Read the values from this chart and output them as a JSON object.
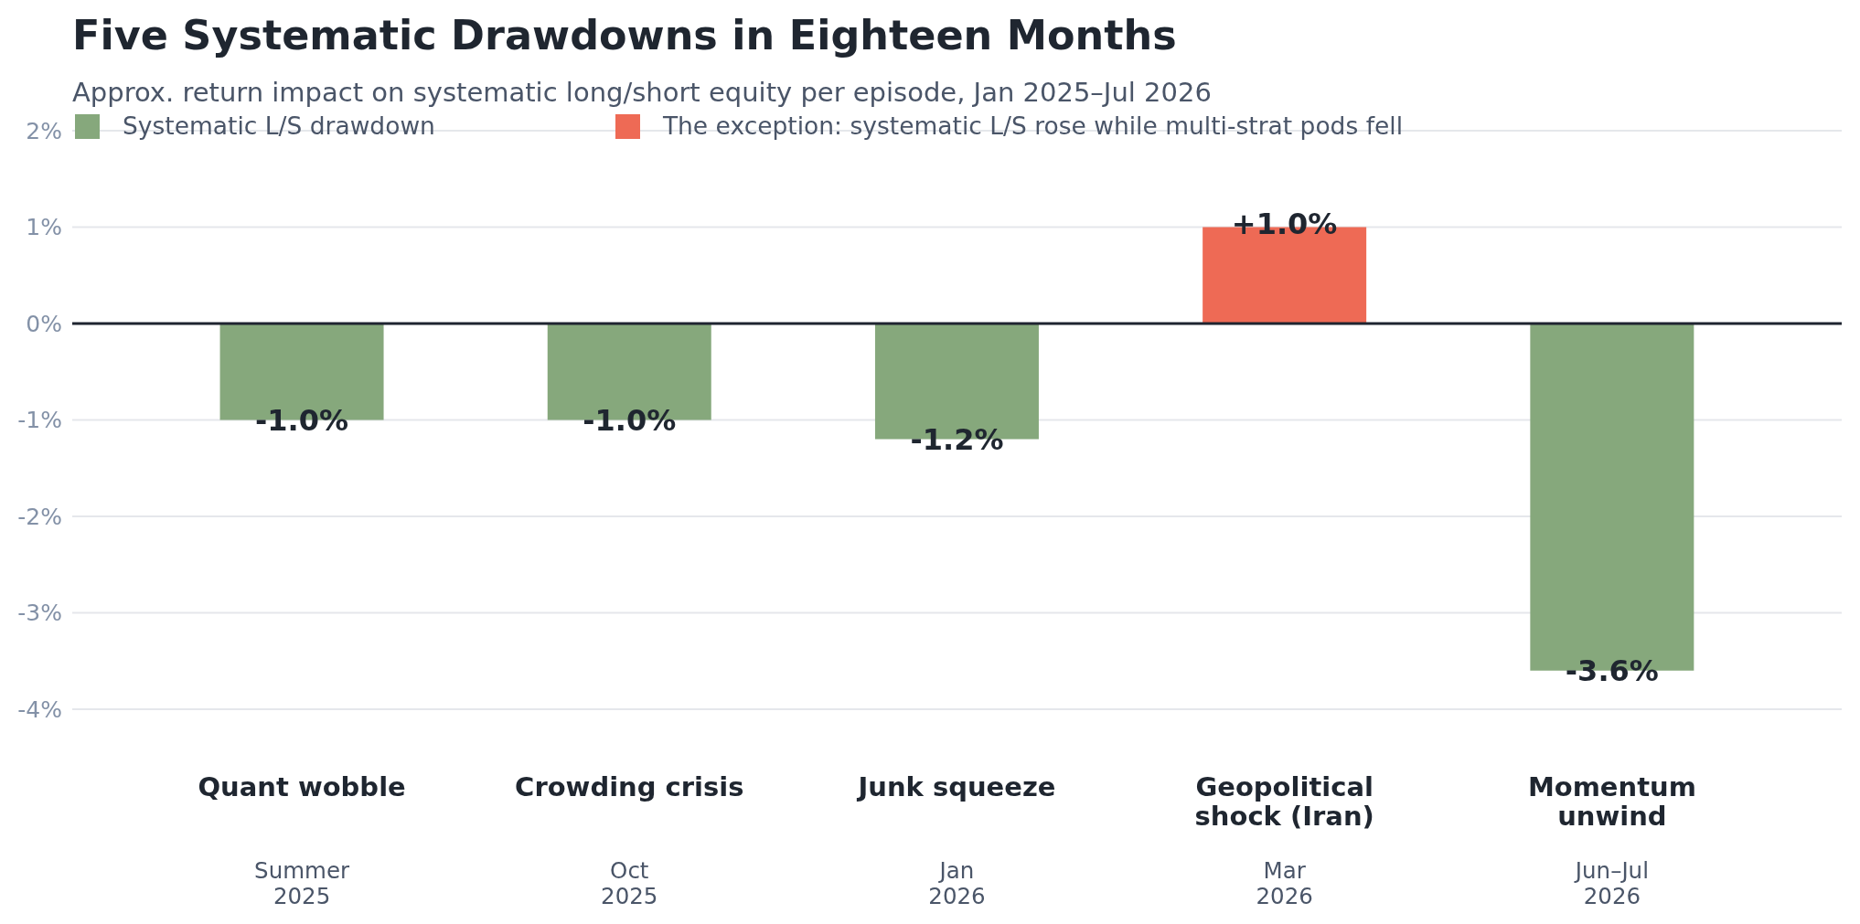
{
  "chart_data": {
    "type": "bar",
    "title": "Five Systematic Drawdowns in Eighteen Months",
    "subtitle": "Approx. return impact on systematic long/short equity per episode, Jan 2025–Jul 2026",
    "categories": [
      "Quant wobble",
      "Crowding crisis",
      "Junk squeeze",
      "Geopolitical\nshock (Iran)",
      "Momentum\nunwind"
    ],
    "series": [
      {
        "name": "Systematic L/S drawdown",
        "color": "#86a87c",
        "values": [
          -1.0,
          -1.0,
          -1.2,
          null,
          -3.6
        ],
        "value_labels": [
          "-1.0%",
          "-1.0%",
          "-1.2%",
          null,
          "-3.6%"
        ]
      },
      {
        "name": "The exception: systematic L/S rose while multi-strat pods fell",
        "color": "#ee6a55",
        "values": [
          null,
          null,
          null,
          1.0,
          null
        ],
        "value_labels": [
          null,
          null,
          null,
          "+1.0%",
          null
        ]
      }
    ],
    "stacked": true,
    "ylim": [
      -4,
      2
    ],
    "yticks": [
      {
        "value": 2,
        "label": "2%"
      },
      {
        "value": 1,
        "label": "1%"
      },
      {
        "value": 0,
        "label": "0%"
      },
      {
        "value": -1,
        "label": "-1%"
      },
      {
        "value": -2,
        "label": "-2%"
      },
      {
        "value": -3,
        "label": "-3%"
      },
      {
        "value": -4,
        "label": "-4%"
      }
    ],
    "grid": "y",
    "legend": "top left",
    "ref_lines": [
      {
        "axis": "y",
        "value": 0,
        "color": "#1f2430"
      }
    ],
    "annotations": [
      "Summer\n2025",
      "Oct\n2025",
      "Jan\n2026",
      "Mar\n2026",
      "Jun–Jul\n2026"
    ]
  }
}
